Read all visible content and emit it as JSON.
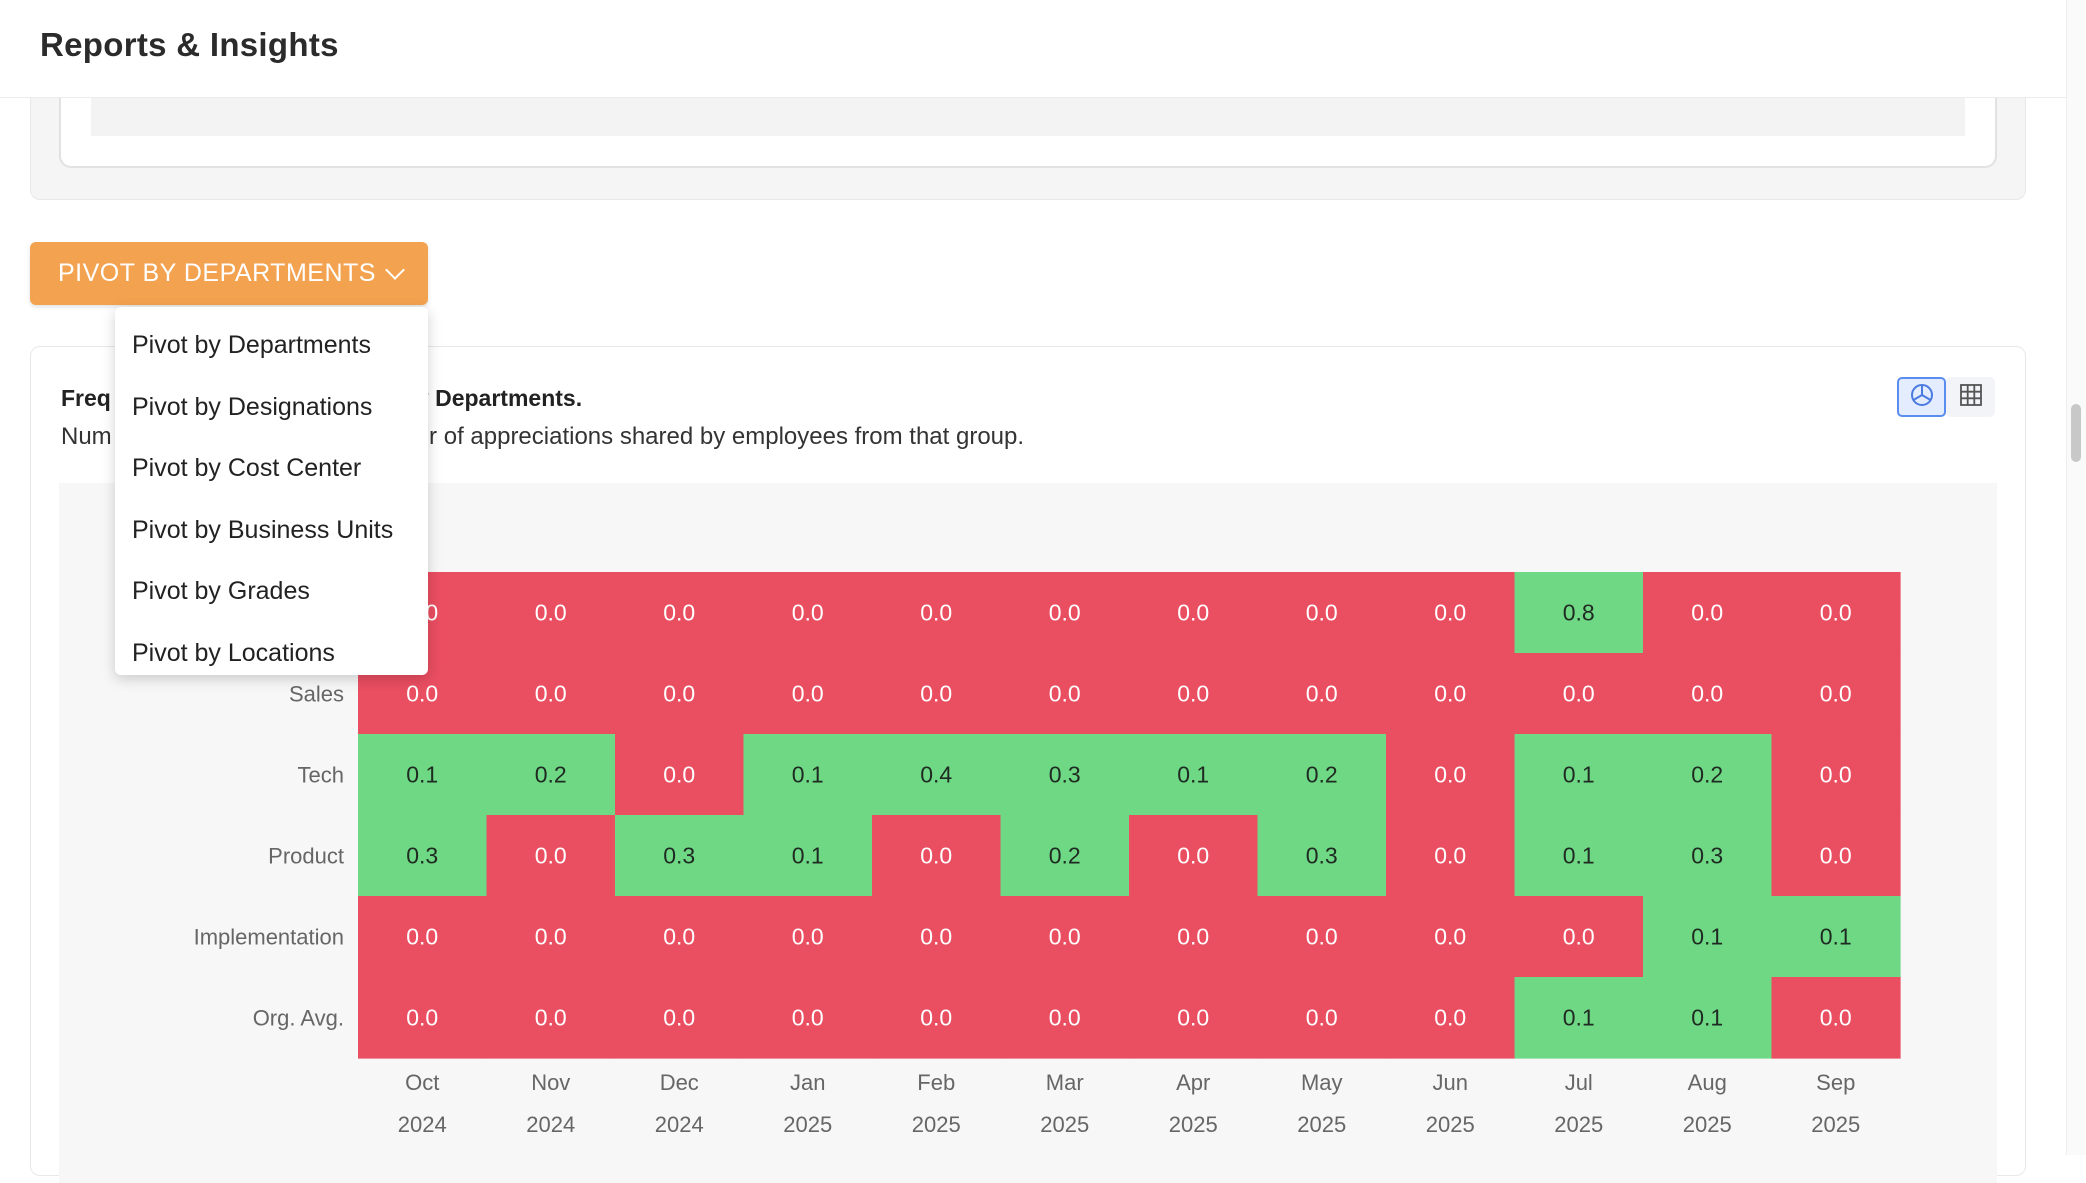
{
  "header": {
    "title": "Reports & Insights"
  },
  "pivot": {
    "button_label": "PIVOT BY DEPARTMENTS",
    "options": [
      "Pivot by Departments",
      "Pivot by Designations",
      "Pivot by Cost Center",
      "Pivot by Business Units",
      "Pivot by Grades",
      "Pivot by Locations"
    ]
  },
  "card": {
    "heading_left": "Freq",
    "heading_right": "ven by Departments.",
    "subheading_left": "Num",
    "subheading_right": "number of appreciations shared by employees from that group."
  },
  "view_toggle": {
    "chart_icon": "pie-chart-icon",
    "table_icon": "table-grid-icon"
  },
  "colors": {
    "high": "#6fd884",
    "low": "#ea4e61",
    "accent": "#f3a24f"
  },
  "chart_data": {
    "type": "heatmap",
    "rows": [
      "",
      "Sales",
      "Tech",
      "Product",
      "Implementation",
      "Org. Avg."
    ],
    "columns": [
      {
        "month": "Oct",
        "year": "2024"
      },
      {
        "month": "Nov",
        "year": "2024"
      },
      {
        "month": "Dec",
        "year": "2024"
      },
      {
        "month": "Jan",
        "year": "2025"
      },
      {
        "month": "Feb",
        "year": "2025"
      },
      {
        "month": "Mar",
        "year": "2025"
      },
      {
        "month": "Apr",
        "year": "2025"
      },
      {
        "month": "May",
        "year": "2025"
      },
      {
        "month": "Jun",
        "year": "2025"
      },
      {
        "month": "Jul",
        "year": "2025"
      },
      {
        "month": "Aug",
        "year": "2025"
      },
      {
        "month": "Sep",
        "year": "2025"
      }
    ],
    "values": [
      [
        "0.0",
        "0.0",
        "0.0",
        "0.0",
        "0.0",
        "0.0",
        "0.0",
        "0.0",
        "0.0",
        "0.8",
        "0.0",
        "0.0"
      ],
      [
        "0.0",
        "0.0",
        "0.0",
        "0.0",
        "0.0",
        "0.0",
        "0.0",
        "0.0",
        "0.0",
        "0.0",
        "0.0",
        "0.0"
      ],
      [
        "0.1",
        "0.2",
        "0.0",
        "0.1",
        "0.4",
        "0.3",
        "0.1",
        "0.2",
        "0.0",
        "0.1",
        "0.2",
        "0.0"
      ],
      [
        "0.3",
        "0.0",
        "0.3",
        "0.1",
        "0.0",
        "0.2",
        "0.0",
        "0.3",
        "0.0",
        "0.1",
        "0.3",
        "0.0"
      ],
      [
        "0.0",
        "0.0",
        "0.0",
        "0.0",
        "0.0",
        "0.0",
        "0.0",
        "0.0",
        "0.0",
        "0.0",
        "0.1",
        "0.1"
      ],
      [
        "0.0",
        "0.0",
        "0.0",
        "0.0",
        "0.0",
        "0.0",
        "0.0",
        "0.0",
        "0.0",
        "0.1",
        "0.1",
        "0.0"
      ]
    ],
    "legend": "none",
    "grid": false
  }
}
